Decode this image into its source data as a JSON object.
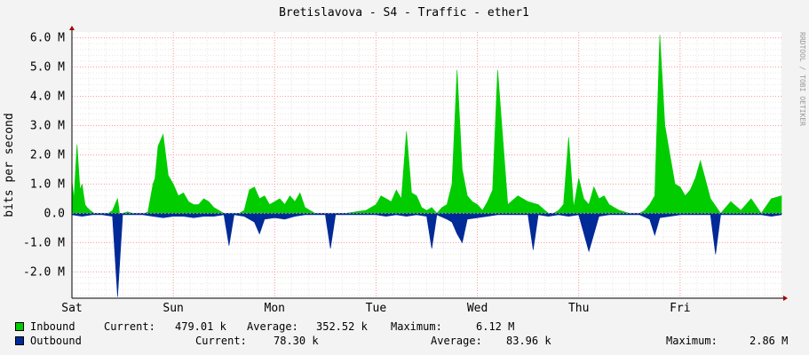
{
  "chart_data": {
    "type": "area",
    "title": "Bretislavova - S4 - Traffic - ether1",
    "ylabel": "bits per second",
    "xlabel": "",
    "watermark": "RRDTOOL / TOBI OETIKER",
    "ylim": [
      -2.9,
      6.2
    ],
    "yticks": [
      -2.0,
      -1.0,
      0.0,
      1.0,
      2.0,
      3.0,
      4.0,
      5.0,
      6.0
    ],
    "ytick_labels": [
      "-2.0 M",
      "-1.0 M",
      "0.0",
      "1.0 M",
      "2.0 M",
      "3.0 M",
      "4.0 M",
      "5.0 M",
      "6.0 M"
    ],
    "xlim": [
      0,
      7.0
    ],
    "xticks": [
      0,
      1,
      2,
      3,
      4,
      5,
      6
    ],
    "xtick_labels": [
      "Sat",
      "Sun",
      "Mon",
      "Tue",
      "Wed",
      "Thu",
      "Fri"
    ],
    "grid": true,
    "legend_position": "bottom",
    "series": [
      {
        "name": "Inbound",
        "color": "#00cc00",
        "unit": "M",
        "x": [
          0,
          0.02,
          0.05,
          0.08,
          0.1,
          0.13,
          0.15,
          0.18,
          0.2,
          0.22,
          0.25,
          0.3,
          0.36,
          0.4,
          0.45,
          0.47,
          0.5,
          0.55,
          0.6,
          0.62,
          0.65,
          0.72,
          0.75,
          0.8,
          0.82,
          0.85,
          0.9,
          0.95,
          1.0,
          1.05,
          1.1,
          1.15,
          1.2,
          1.25,
          1.3,
          1.35,
          1.4,
          1.45,
          1.5,
          1.55,
          1.6,
          1.65,
          1.7,
          1.75,
          1.8,
          1.85,
          1.9,
          1.95,
          2.0,
          2.05,
          2.1,
          2.15,
          2.2,
          2.25,
          2.3,
          2.35,
          2.4,
          2.5,
          2.6,
          2.7,
          2.8,
          2.9,
          3.0,
          3.05,
          3.1,
          3.15,
          3.2,
          3.25,
          3.3,
          3.35,
          3.4,
          3.45,
          3.5,
          3.55,
          3.6,
          3.65,
          3.7,
          3.75,
          3.8,
          3.85,
          3.9,
          3.95,
          4.0,
          4.05,
          4.1,
          4.15,
          4.2,
          4.3,
          4.4,
          4.5,
          4.6,
          4.7,
          4.75,
          4.8,
          4.85,
          4.9,
          4.95,
          5.0,
          5.05,
          5.1,
          5.15,
          5.2,
          5.25,
          5.3,
          5.4,
          5.5,
          5.6,
          5.65,
          5.7,
          5.75,
          5.8,
          5.85,
          5.9,
          5.95,
          6.0,
          6.05,
          6.1,
          6.15,
          6.2,
          6.3,
          6.4,
          6.5,
          6.6,
          6.7,
          6.8,
          6.9,
          7.0
        ],
        "values": [
          1.1,
          0.5,
          2.35,
          0.8,
          1.0,
          0.3,
          0.2,
          0.1,
          0.05,
          0.0,
          0.0,
          0.0,
          0.0,
          0.1,
          0.5,
          0.0,
          0.0,
          0.05,
          0.0,
          0.0,
          0.0,
          0.0,
          0.05,
          1.0,
          1.2,
          2.3,
          2.7,
          1.3,
          1.0,
          0.6,
          0.7,
          0.4,
          0.3,
          0.3,
          0.5,
          0.4,
          0.2,
          0.1,
          0.0,
          0.0,
          0.0,
          0.0,
          0.1,
          0.8,
          0.9,
          0.5,
          0.6,
          0.3,
          0.4,
          0.5,
          0.3,
          0.6,
          0.4,
          0.7,
          0.2,
          0.1,
          0.0,
          0.0,
          0.0,
          0.0,
          0.05,
          0.1,
          0.3,
          0.6,
          0.5,
          0.4,
          0.8,
          0.5,
          2.8,
          0.7,
          0.6,
          0.2,
          0.1,
          0.2,
          0.0,
          0.2,
          0.3,
          1.0,
          4.9,
          1.5,
          0.6,
          0.4,
          0.3,
          0.1,
          0.4,
          0.8,
          4.9,
          0.3,
          0.6,
          0.4,
          0.3,
          0.0,
          0.0,
          0.1,
          0.3,
          2.6,
          0.2,
          1.2,
          0.5,
          0.3,
          0.9,
          0.5,
          0.6,
          0.3,
          0.1,
          0.0,
          0.0,
          0.1,
          0.3,
          0.6,
          6.1,
          3.0,
          2.0,
          1.0,
          0.9,
          0.6,
          0.8,
          1.2,
          1.8,
          0.5,
          0.0,
          0.4,
          0.1,
          0.5,
          0.0,
          0.5,
          0.6
        ]
      },
      {
        "name": "Outbound",
        "color": "#002a97",
        "unit": "M",
        "x": [
          0,
          0.1,
          0.2,
          0.3,
          0.4,
          0.45,
          0.5,
          0.55,
          0.6,
          0.7,
          0.8,
          0.9,
          1.0,
          1.1,
          1.2,
          1.3,
          1.4,
          1.5,
          1.55,
          1.6,
          1.7,
          1.8,
          1.85,
          1.9,
          2.0,
          2.1,
          2.2,
          2.3,
          2.4,
          2.5,
          2.55,
          2.6,
          2.7,
          2.8,
          2.9,
          3.0,
          3.1,
          3.2,
          3.3,
          3.4,
          3.5,
          3.55,
          3.6,
          3.7,
          3.75,
          3.8,
          3.85,
          3.9,
          4.0,
          4.1,
          4.2,
          4.3,
          4.4,
          4.5,
          4.55,
          4.6,
          4.7,
          4.8,
          4.9,
          5.0,
          5.1,
          5.2,
          5.3,
          5.4,
          5.5,
          5.6,
          5.7,
          5.75,
          5.8,
          5.9,
          6.0,
          6.1,
          6.2,
          6.3,
          6.35,
          6.4,
          6.5,
          6.6,
          6.7,
          6.8,
          6.9,
          7.0
        ],
        "values": [
          -0.05,
          -0.1,
          -0.05,
          -0.05,
          -0.1,
          -2.85,
          -0.05,
          -0.05,
          -0.05,
          -0.05,
          -0.1,
          -0.15,
          -0.1,
          -0.1,
          -0.15,
          -0.1,
          -0.1,
          -0.05,
          -1.1,
          -0.05,
          -0.1,
          -0.3,
          -0.7,
          -0.2,
          -0.15,
          -0.2,
          -0.1,
          -0.05,
          -0.05,
          -0.05,
          -1.2,
          -0.05,
          -0.05,
          -0.05,
          -0.05,
          -0.05,
          -0.1,
          -0.05,
          -0.1,
          -0.05,
          -0.1,
          -1.2,
          -0.05,
          -0.2,
          -0.3,
          -0.7,
          -1.0,
          -0.2,
          -0.15,
          -0.1,
          -0.05,
          -0.05,
          -0.05,
          -0.05,
          -1.25,
          -0.05,
          -0.1,
          -0.05,
          -0.1,
          -0.05,
          -1.3,
          -0.1,
          -0.05,
          -0.05,
          -0.05,
          -0.05,
          -0.2,
          -0.75,
          -0.15,
          -0.1,
          -0.05,
          -0.05,
          -0.05,
          -0.05,
          -1.4,
          -0.05,
          -0.05,
          -0.05,
          -0.05,
          -0.05,
          -0.1,
          -0.05
        ]
      }
    ]
  },
  "legend": {
    "inbound": {
      "name": "Inbound",
      "color": "#00cc00",
      "current_label": "Current:",
      "current": "479.01 k",
      "average_label": "Average:",
      "average": "352.52 k",
      "maximum_label": "Maximum:",
      "maximum": "6.12 M"
    },
    "outbound": {
      "name": "Outbound",
      "color": "#002a97",
      "current_label": "Current:",
      "current": "78.30 k",
      "average_label": "Average:",
      "average": "83.96 k",
      "maximum_label": "Maximum:",
      "maximum": "2.86 M"
    }
  }
}
